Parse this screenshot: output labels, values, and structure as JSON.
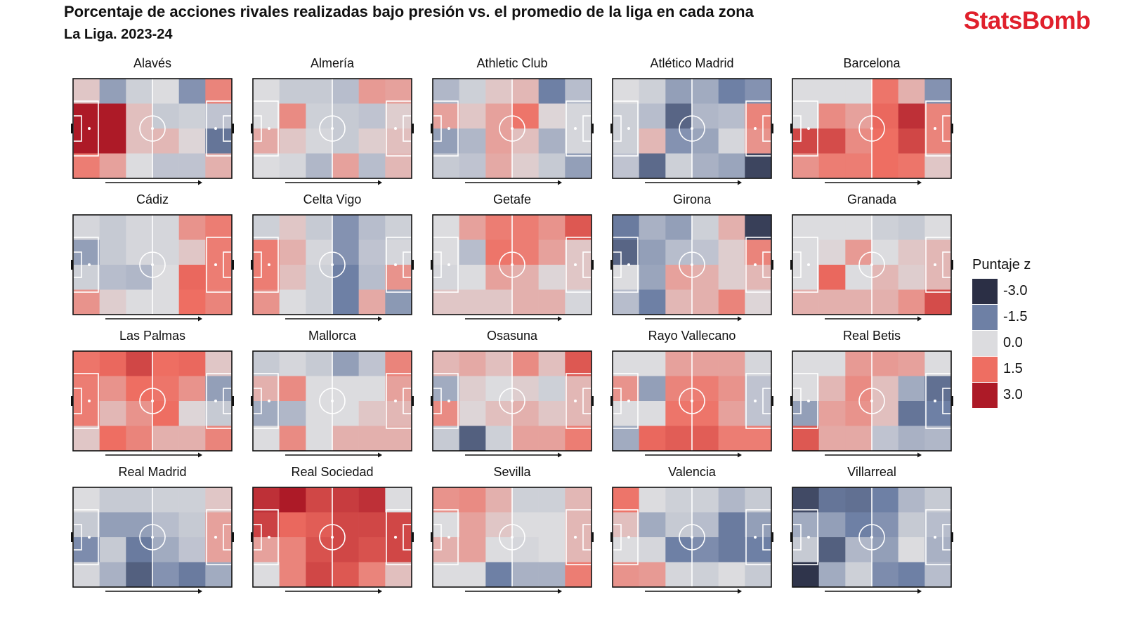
{
  "title": "Porcentaje de acciones rivales realizadas bajo presión vs. el promedio de la liga en cada zona",
  "subtitle": "La Liga. 2023-24",
  "brand": "StatsBomb",
  "colors": {
    "brand": "#e0202c",
    "scale_min": "#2b2f45",
    "scale_mid": "#dcdcdf",
    "scale_max": "#ad1a27"
  },
  "legend": {
    "title": "Puntaje z",
    "entries": [
      {
        "label": "-3.0",
        "value": -3.0
      },
      {
        "label": "-1.5",
        "value": -1.5
      },
      {
        "label": "0.0",
        "value": 0.0
      },
      {
        "label": "1.5",
        "value": 1.5
      },
      {
        "label": "3.0",
        "value": 3.0
      }
    ]
  },
  "chart_data": {
    "type": "heatmap",
    "grid": {
      "columns": 6,
      "rows": 4
    },
    "zmin": -3.0,
    "zmax": 3.0,
    "teams": [
      {
        "name": "Alavés",
        "z": [
          [
            0.3,
            -1.0,
            -0.2,
            0.0,
            -1.2,
            1.2
          ],
          [
            3.0,
            3.0,
            0.4,
            -0.3,
            -0.2,
            -0.4
          ],
          [
            3.0,
            3.0,
            0.4,
            0.5,
            0.1,
            -1.7
          ],
          [
            1.3,
            0.8,
            0.0,
            -0.4,
            -0.4,
            0.6
          ]
        ]
      },
      {
        "name": "Almería",
        "z": [
          [
            0.0,
            -0.3,
            -0.3,
            -0.5,
            0.9,
            0.8
          ],
          [
            0.0,
            1.1,
            -0.2,
            -0.3,
            -0.4,
            0.2
          ],
          [
            0.7,
            0.3,
            -0.1,
            -0.3,
            0.2,
            0.4
          ],
          [
            0.0,
            -0.1,
            -0.6,
            0.8,
            -0.5,
            0.5
          ]
        ]
      },
      {
        "name": "Athletic Club",
        "z": [
          [
            -0.6,
            -0.2,
            0.3,
            0.5,
            -1.5,
            -0.5
          ],
          [
            0.8,
            0.3,
            0.8,
            1.4,
            0.1,
            -0.1
          ],
          [
            -1.0,
            -0.6,
            0.8,
            0.4,
            -0.7,
            -0.1
          ],
          [
            -0.3,
            -0.4,
            0.7,
            0.2,
            -0.3,
            -1.0
          ]
        ]
      },
      {
        "name": "Atlético Madrid",
        "z": [
          [
            0.0,
            -0.2,
            -1.0,
            -0.8,
            -1.5,
            -1.2
          ],
          [
            -0.2,
            -0.5,
            -2.0,
            -0.6,
            -0.5,
            1.2
          ],
          [
            -0.2,
            0.5,
            -1.2,
            -0.9,
            -0.1,
            1.0
          ],
          [
            -0.4,
            -1.9,
            -0.2,
            -0.7,
            -0.9,
            -2.6
          ]
        ]
      },
      {
        "name": "Barcelona",
        "z": [
          [
            0.0,
            0.0,
            0.0,
            1.4,
            0.6,
            -1.2
          ],
          [
            0.0,
            1.1,
            0.8,
            1.6,
            2.6,
            1.2
          ],
          [
            2.2,
            2.1,
            1.1,
            1.5,
            2.2,
            1.2
          ],
          [
            1.0,
            1.3,
            1.3,
            1.5,
            1.4,
            0.3
          ]
        ]
      },
      {
        "name": "Cádiz",
        "z": [
          [
            -0.1,
            -0.3,
            -0.1,
            -0.1,
            1.0,
            1.3
          ],
          [
            -1.0,
            -0.3,
            -0.1,
            -0.1,
            0.3,
            1.3
          ],
          [
            -0.2,
            -0.5,
            -0.6,
            0.0,
            1.6,
            1.3
          ],
          [
            1.0,
            0.2,
            0.0,
            0.0,
            1.5,
            1.2
          ]
        ]
      },
      {
        "name": "Celta Vigo",
        "z": [
          [
            -0.2,
            0.3,
            -0.3,
            -1.2,
            -0.5,
            -0.2
          ],
          [
            1.3,
            0.6,
            -0.1,
            -1.2,
            -0.4,
            -0.1
          ],
          [
            1.3,
            0.4,
            -0.2,
            -1.5,
            -0.5,
            1.0
          ],
          [
            1.0,
            0.0,
            -0.2,
            -1.5,
            0.7,
            -1.1
          ]
        ]
      },
      {
        "name": "Getafe",
        "z": [
          [
            0.0,
            0.8,
            1.3,
            1.3,
            1.0,
            1.9
          ],
          [
            0.0,
            -0.5,
            1.4,
            1.3,
            0.8,
            0.3
          ],
          [
            -0.1,
            0.0,
            0.8,
            0.6,
            0.1,
            0.3
          ],
          [
            0.3,
            0.3,
            0.3,
            0.6,
            0.6,
            -0.1
          ]
        ]
      },
      {
        "name": "Girona",
        "z": [
          [
            -1.6,
            -0.7,
            -1.0,
            -0.2,
            0.6,
            -2.7
          ],
          [
            -2.0,
            -1.0,
            -0.5,
            -0.4,
            0.2,
            1.2
          ],
          [
            0.0,
            -0.9,
            0.8,
            0.6,
            0.2,
            0.5
          ],
          [
            -0.5,
            -1.5,
            0.5,
            0.6,
            1.2,
            0.1
          ]
        ]
      },
      {
        "name": "Granada",
        "z": [
          [
            0.0,
            0.0,
            0.0,
            -0.2,
            -0.3,
            0.0
          ],
          [
            0.0,
            0.1,
            0.9,
            0.0,
            0.3,
            0.5
          ],
          [
            0.0,
            1.6,
            0.0,
            0.5,
            0.2,
            0.5
          ],
          [
            0.6,
            0.6,
            0.6,
            0.6,
            1.0,
            2.1
          ]
        ]
      },
      {
        "name": "Las Palmas",
        "z": [
          [
            1.4,
            1.6,
            2.2,
            1.5,
            1.6,
            0.3
          ],
          [
            1.3,
            1.0,
            1.5,
            1.4,
            1.0,
            -1.0
          ],
          [
            1.3,
            0.5,
            1.0,
            1.5,
            0.1,
            -0.3
          ],
          [
            0.3,
            1.5,
            1.2,
            0.6,
            0.6,
            1.2
          ]
        ]
      },
      {
        "name": "Mallorca",
        "z": [
          [
            -0.3,
            -0.1,
            -0.3,
            -1.0,
            -0.4,
            1.2
          ],
          [
            0.6,
            1.1,
            0.0,
            0.0,
            0.0,
            0.8
          ],
          [
            -0.8,
            -0.6,
            0.0,
            0.0,
            0.3,
            0.5
          ],
          [
            0.0,
            1.1,
            0.0,
            0.6,
            0.6,
            0.6
          ]
        ]
      },
      {
        "name": "Osasuna",
        "z": [
          [
            0.5,
            0.7,
            0.4,
            1.1,
            0.4,
            1.9
          ],
          [
            -0.8,
            0.2,
            0.0,
            0.2,
            -0.2,
            0.5
          ],
          [
            1.1,
            0.1,
            0.4,
            0.6,
            0.3,
            0.5
          ],
          [
            -0.3,
            -2.1,
            -0.2,
            0.8,
            0.8,
            1.3
          ]
        ]
      },
      {
        "name": "Rayo Vallecano",
        "z": [
          [
            0.0,
            0.0,
            0.8,
            0.8,
            0.8,
            -0.1
          ],
          [
            1.0,
            -1.0,
            1.2,
            1.3,
            1.0,
            -0.4
          ],
          [
            0.0,
            0.0,
            1.4,
            1.4,
            0.8,
            -0.4
          ],
          [
            -0.8,
            1.6,
            1.8,
            1.8,
            1.3,
            1.3
          ]
        ]
      },
      {
        "name": "Real Betis",
        "z": [
          [
            0.0,
            0.0,
            0.9,
            0.9,
            0.8,
            0.0
          ],
          [
            0.0,
            0.5,
            1.1,
            0.4,
            -0.8,
            -1.8
          ],
          [
            -1.0,
            0.8,
            1.0,
            0.4,
            -1.7,
            -1.5
          ],
          [
            1.9,
            0.7,
            0.7,
            -0.4,
            -0.7,
            -0.6
          ]
        ]
      },
      {
        "name": "Real Madrid",
        "z": [
          [
            0.0,
            -0.3,
            -0.3,
            -0.2,
            -0.2,
            0.3
          ],
          [
            -0.3,
            -1.0,
            -1.0,
            -0.5,
            -0.3,
            0.8
          ],
          [
            -1.3,
            -0.3,
            -1.6,
            -0.8,
            -0.4,
            0.8
          ],
          [
            -0.1,
            -0.7,
            -2.1,
            -1.2,
            -1.6,
            -0.8
          ]
        ]
      },
      {
        "name": "Real Sociedad",
        "z": [
          [
            2.6,
            3.0,
            2.2,
            2.4,
            2.6,
            0.0
          ],
          [
            2.3,
            1.6,
            1.8,
            2.2,
            2.2,
            2.2
          ],
          [
            0.8,
            1.2,
            2.0,
            2.2,
            2.0,
            2.2
          ],
          [
            0.0,
            1.2,
            2.2,
            1.9,
            1.2,
            0.4
          ]
        ]
      },
      {
        "name": "Sevilla",
        "z": [
          [
            1.0,
            1.1,
            0.6,
            -0.2,
            -0.2,
            0.5
          ],
          [
            0.0,
            0.8,
            0.3,
            0.0,
            0.0,
            0.5
          ],
          [
            0.6,
            0.8,
            0.0,
            -0.1,
            0.0,
            0.5
          ],
          [
            0.0,
            0.0,
            -1.5,
            -0.7,
            -0.7,
            1.3
          ]
        ]
      },
      {
        "name": "Valencia",
        "z": [
          [
            1.4,
            0.0,
            -0.2,
            -0.2,
            -0.6,
            -0.3
          ],
          [
            0.4,
            -0.8,
            -0.3,
            -0.5,
            -1.6,
            -1.0
          ],
          [
            0.0,
            -0.1,
            -1.5,
            -1.3,
            -1.6,
            -1.5
          ],
          [
            1.0,
            0.9,
            -0.1,
            -0.2,
            0.0,
            -0.3
          ]
        ]
      },
      {
        "name": "Villarreal",
        "z": [
          [
            -2.5,
            -1.7,
            -1.8,
            -1.5,
            -0.6,
            -0.3
          ],
          [
            -0.8,
            -1.0,
            -1.5,
            -1.2,
            -0.3,
            -0.5
          ],
          [
            -0.3,
            -2.1,
            -0.6,
            -1.0,
            0.0,
            -0.7
          ],
          [
            -2.9,
            -0.8,
            -0.2,
            -1.3,
            -1.5,
            -0.5
          ]
        ]
      }
    ]
  }
}
